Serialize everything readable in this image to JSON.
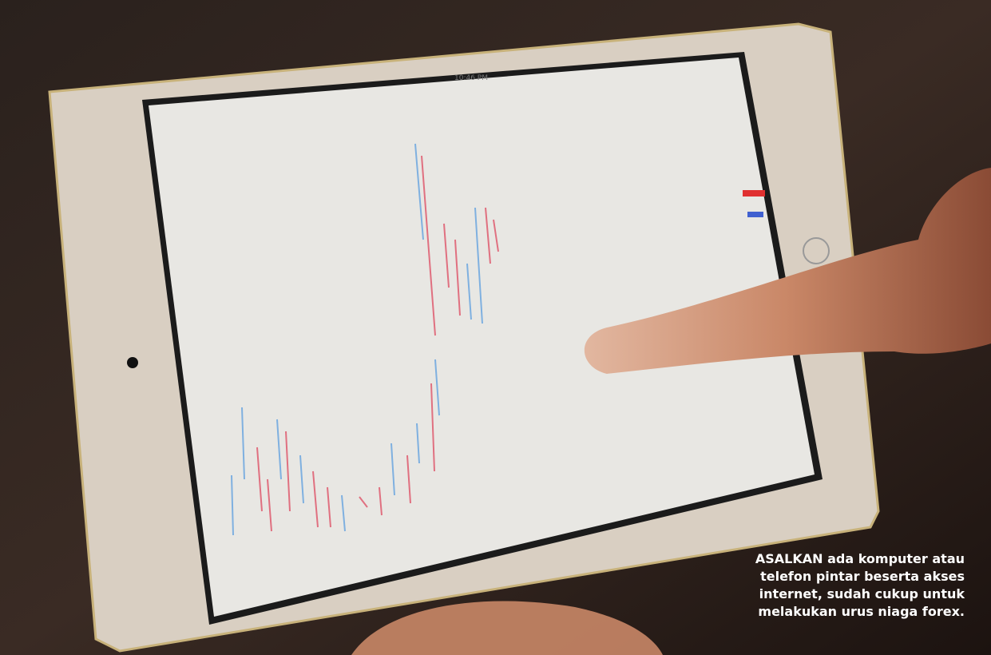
{
  "status_bar": {
    "time": "10:46 PM"
  },
  "caption": {
    "lines": [
      "ASALKAN ada komputer atau",
      "telefon pintar beserta akses",
      "internet, sudah cukup untuk",
      "melakukan urus niaga forex."
    ]
  }
}
